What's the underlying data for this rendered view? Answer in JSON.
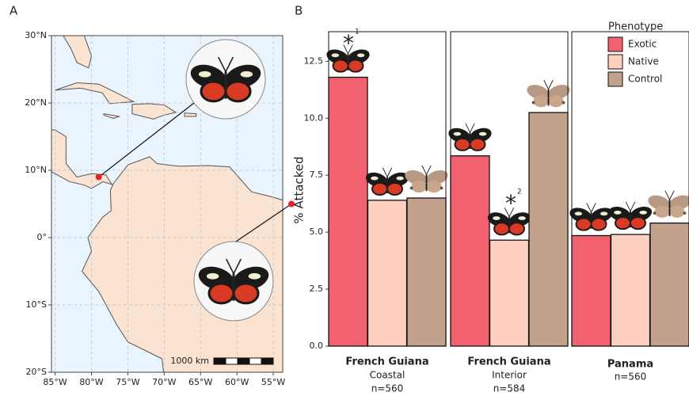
{
  "panel_labels": [
    "A",
    "B"
  ],
  "chart_data": [
    {
      "type": "map",
      "xlim": [
        -85.5,
        -53.7
      ],
      "ylim": [
        -20,
        30
      ],
      "xticks": [
        {
          "value": -85,
          "label": "85°W"
        },
        {
          "value": -80,
          "label": "80°W"
        },
        {
          "value": -75,
          "label": "75°W"
        },
        {
          "value": -70,
          "label": "70°W"
        },
        {
          "value": -65,
          "label": "65°W"
        },
        {
          "value": -60,
          "label": "60°W"
        },
        {
          "value": -55,
          "label": "55°W"
        }
      ],
      "yticks": [
        {
          "value": -20,
          "label": "20°S"
        },
        {
          "value": -10,
          "label": "10°S"
        },
        {
          "value": 0,
          "label": "0°"
        },
        {
          "value": 10,
          "label": "10°N"
        },
        {
          "value": 20,
          "label": "20°N"
        },
        {
          "value": 30,
          "label": "30°N"
        }
      ],
      "points": {
        "x": [
          -79,
          -52.5
        ],
        "y": [
          9,
          5
        ],
        "color": "#e8202a"
      },
      "scale_bar": "1000 km",
      "grid": true
    },
    {
      "type": "bar",
      "ylabel": "% Attacked",
      "legend_title": "Phenotype",
      "groups": [
        {
          "name": "French Guiana",
          "subtitle": "Coastal",
          "n": "n=560"
        },
        {
          "name": "French Guiana",
          "subtitle": "Interior",
          "n": "n=584"
        },
        {
          "name": "Panama",
          "n": "n=560"
        }
      ],
      "series": [
        {
          "name": "Exotic",
          "color": "#f2616f",
          "values": [
            11.8,
            8.35,
            4.85
          ]
        },
        {
          "name": "Native",
          "color": "#fdd0c0",
          "values": [
            6.4,
            4.65,
            4.9
          ]
        },
        {
          "name": "Control",
          "color": "#c2a28c",
          "values": [
            6.5,
            10.25,
            5.4
          ]
        }
      ],
      "ylim": [
        0,
        13.8
      ],
      "yticks": [
        {
          "value": 0,
          "label": "0.0"
        },
        2.5,
        {
          "value": 5,
          "label": "5.0"
        },
        7.5,
        {
          "value": 10,
          "label": "10.0"
        },
        12.5
      ],
      "annotations": [
        {
          "text": "*",
          "sup": "1"
        },
        {
          "text": "*",
          "sup": "2"
        }
      ]
    }
  ]
}
